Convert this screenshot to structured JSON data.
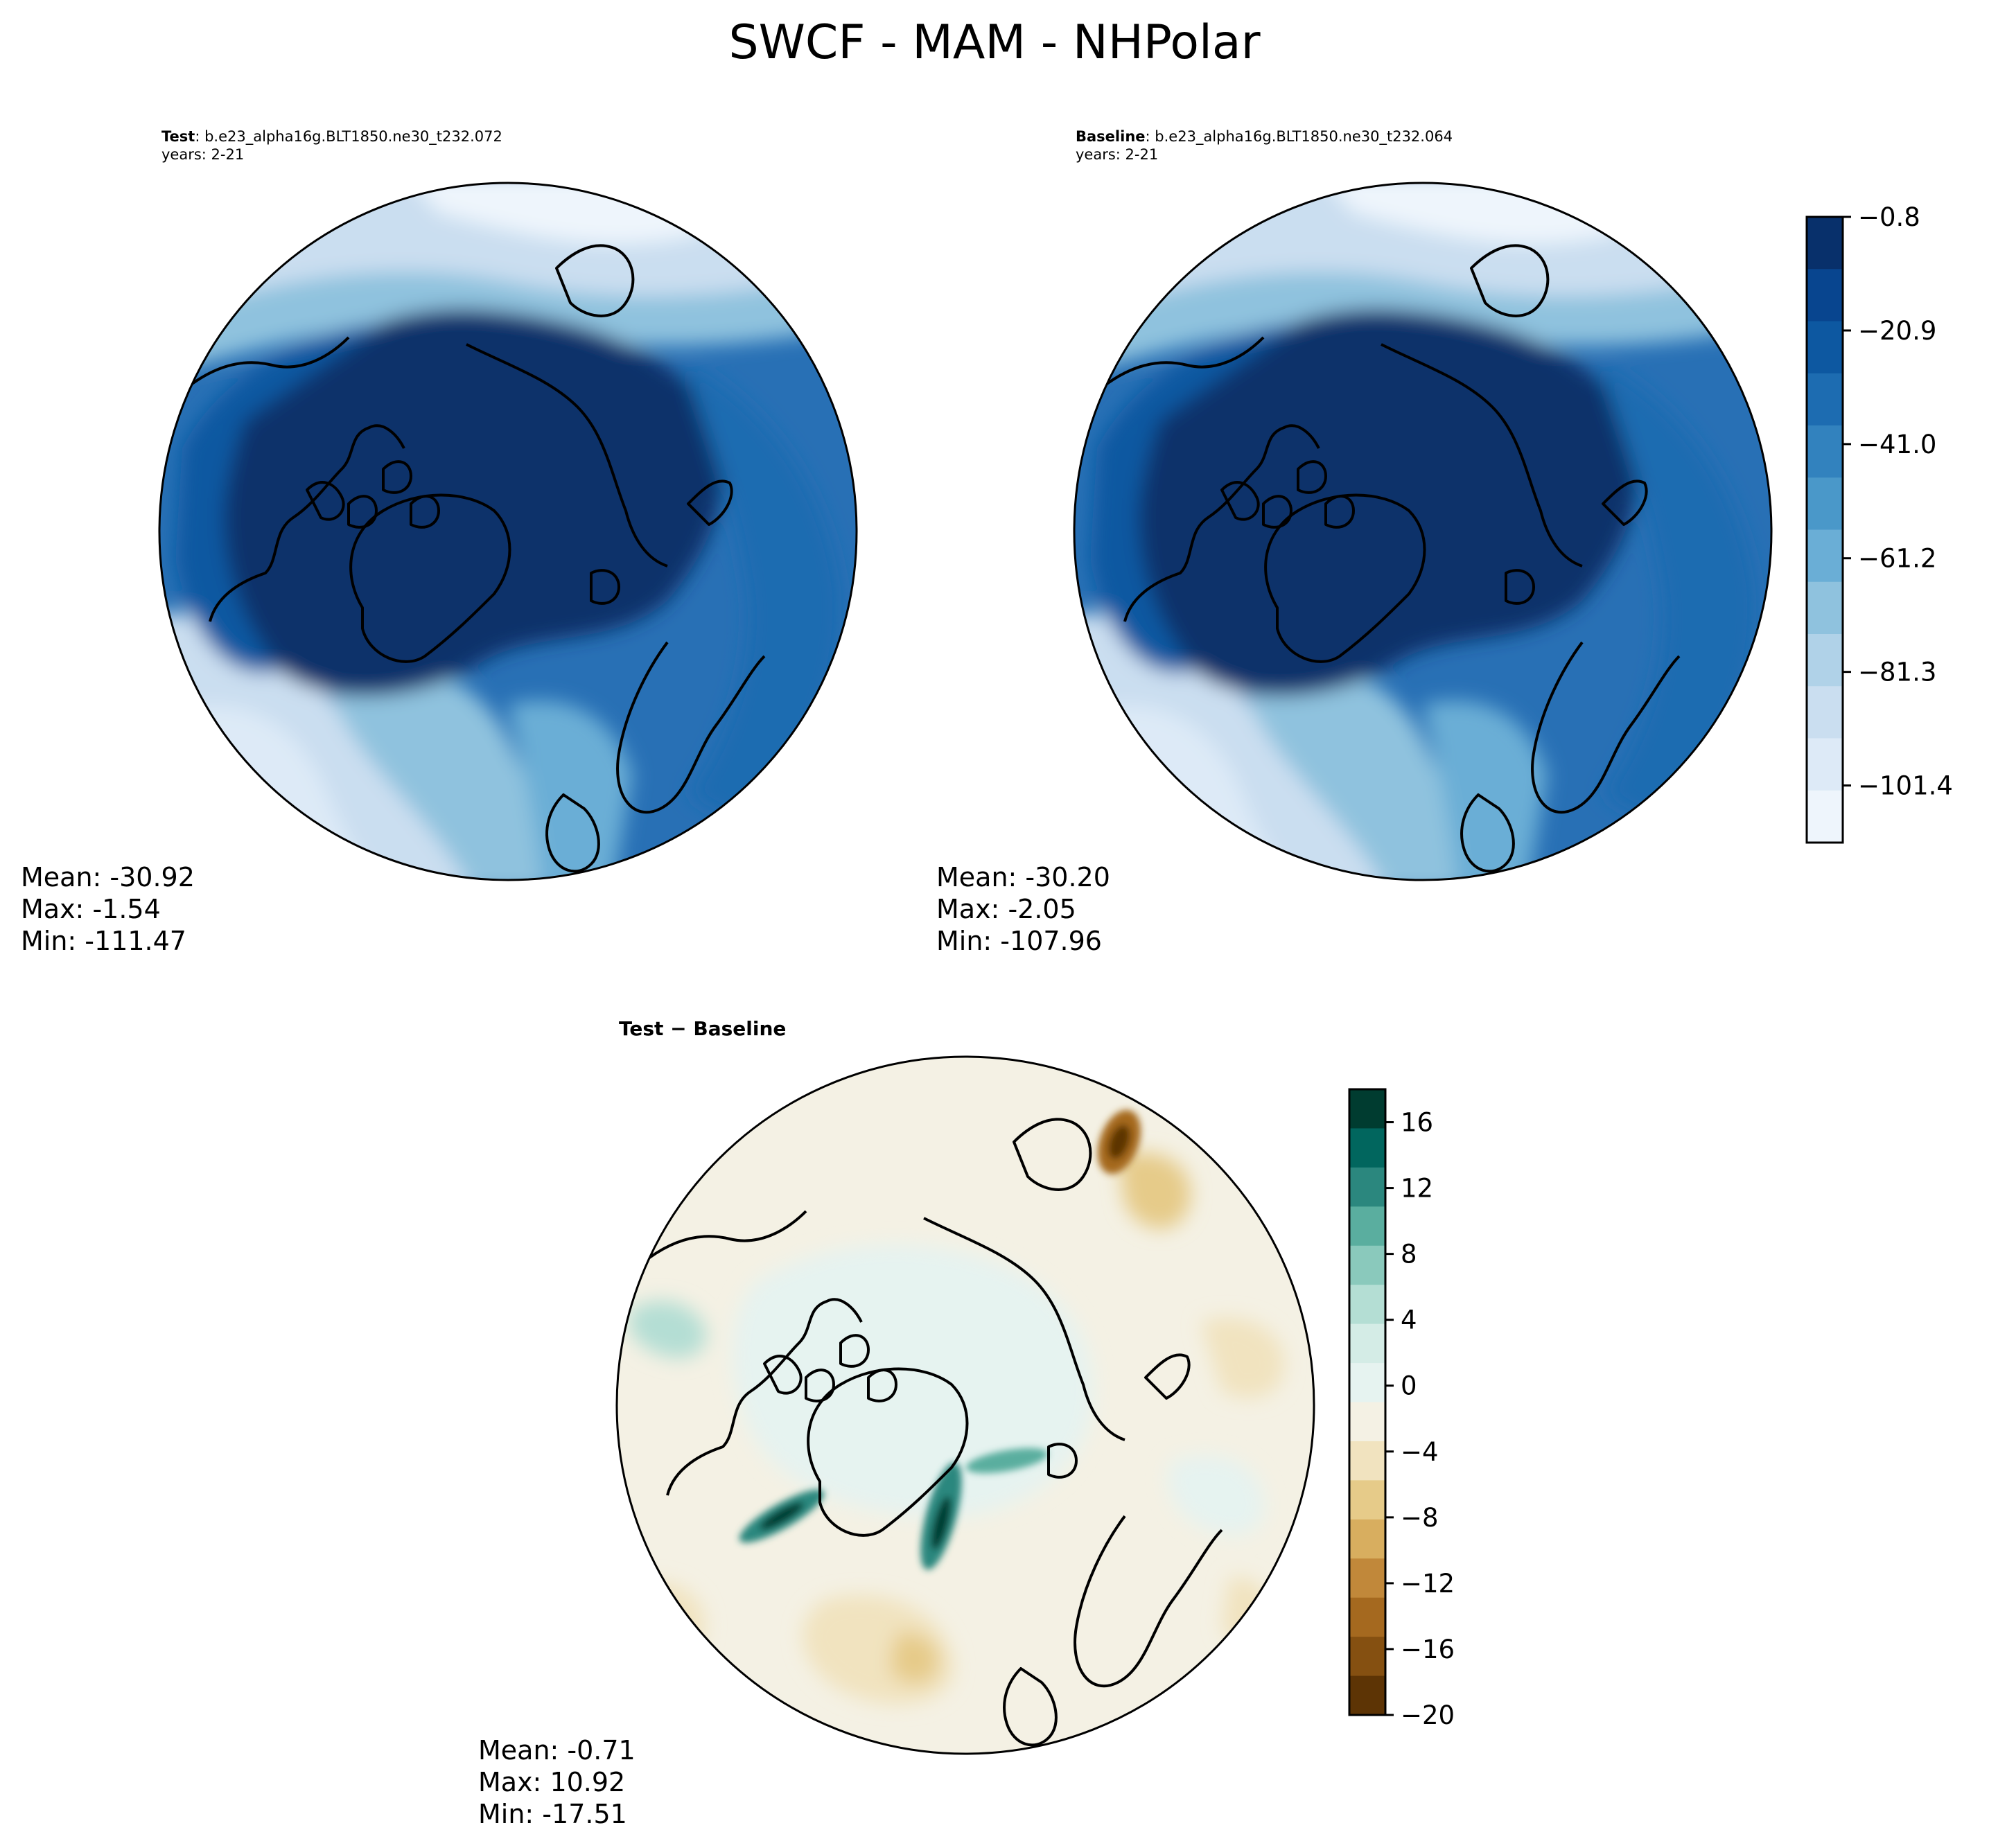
{
  "figure": {
    "title": "SWCF - MAM - NHPolar"
  },
  "panels": {
    "test": {
      "label": "Test",
      "case": "b.e23_alpha16g.BLT1850.ne30_t232.072",
      "years": "years: 2-21",
      "stats": {
        "mean": "Mean: -30.92",
        "max": "Max: -1.54",
        "min": "Min: -111.47"
      }
    },
    "baseline": {
      "label": "Baseline",
      "case": "b.e23_alpha16g.BLT1850.ne30_t232.064",
      "years": "years: 2-21",
      "stats": {
        "mean": "Mean: -30.20",
        "max": "Max: -2.05",
        "min": "Min: -107.96"
      }
    },
    "diff": {
      "label": "Test − Baseline",
      "stats": {
        "mean": "Mean: -0.71",
        "max": "Max: 10.92",
        "min": "Min: -17.51"
      }
    }
  },
  "chart_data": [
    {
      "type": "heatmap",
      "title": "Test",
      "projection": "north-polar-stereographic",
      "colormap": "Blues",
      "colorbar": {
        "ticks": [
          -0.8,
          -20.9,
          -41.0,
          -61.2,
          -81.3,
          -101.4
        ],
        "tick_labels": [
          "−0.8",
          "−20.9",
          "−41.0",
          "−61.2",
          "−81.3",
          "−101.4"
        ],
        "range": [
          -111.5,
          -0.8
        ],
        "colors": [
          "#08306b",
          "#08458f",
          "#0d58a1",
          "#1d6cb1",
          "#3282be",
          "#4a98c9",
          "#6aaed6",
          "#8fc2de",
          "#b0d2e8",
          "#cadef0",
          "#ddeaf7",
          "#eef5fc"
        ]
      },
      "stats": {
        "mean": -30.92,
        "max": -1.54,
        "min": -111.47
      }
    },
    {
      "type": "heatmap",
      "title": "Baseline",
      "projection": "north-polar-stereographic",
      "colormap": "Blues",
      "stats": {
        "mean": -30.2,
        "max": -2.05,
        "min": -107.96
      }
    },
    {
      "type": "heatmap",
      "title": "Test − Baseline",
      "projection": "north-polar-stereographic",
      "colormap": "BrBG",
      "colorbar": {
        "ticks": [
          16,
          12,
          8,
          4,
          0,
          -4,
          -8,
          -12,
          -16,
          -20
        ],
        "tick_labels": [
          "16",
          "12",
          "8",
          "4",
          "0",
          "−4",
          "−8",
          "−12",
          "−16",
          "−20"
        ],
        "range": [
          -20,
          18
        ],
        "colors": [
          "#003c30",
          "#01665e",
          "#2b877e",
          "#5aae9f",
          "#8ac9bc",
          "#b4ded4",
          "#d4ece6",
          "#e6f3f0",
          "#f4f1e4",
          "#f1e3bf",
          "#e6cb89",
          "#d8ae5f",
          "#c1883a",
          "#a5691f",
          "#855011",
          "#5d3405"
        ]
      },
      "stats": {
        "mean": -0.71,
        "max": 10.92,
        "min": -17.51
      }
    }
  ]
}
